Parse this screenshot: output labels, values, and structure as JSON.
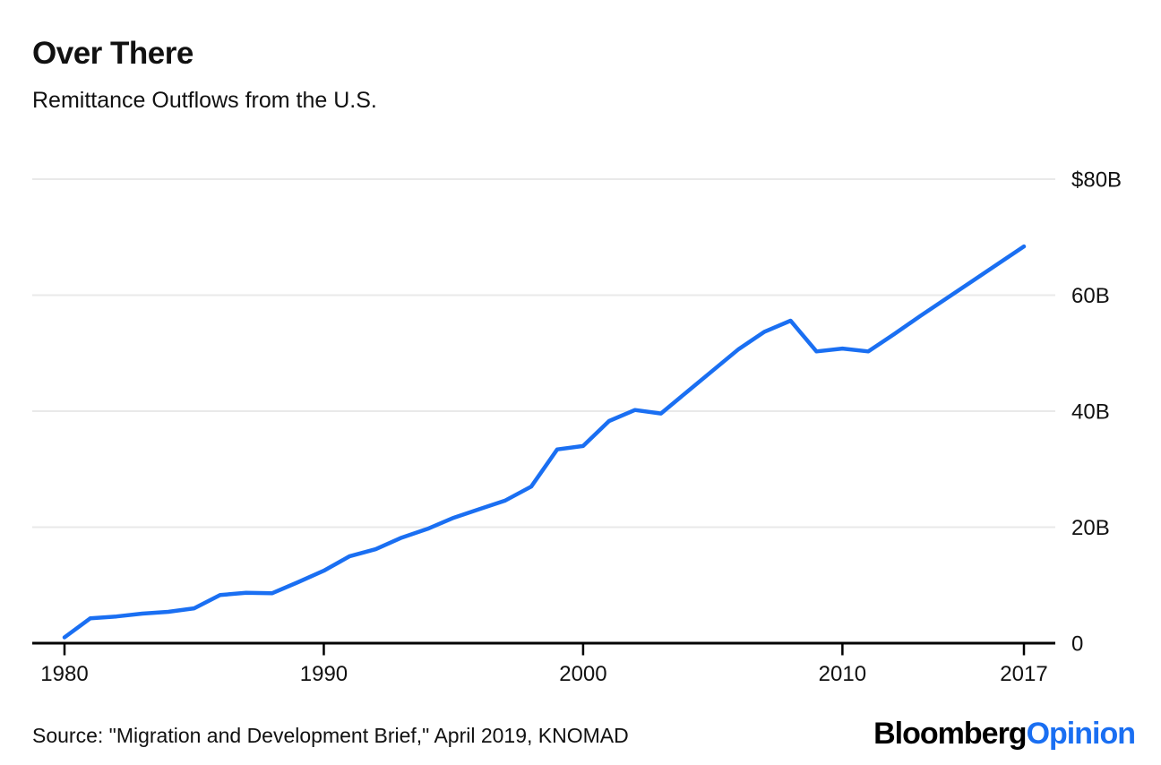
{
  "header": {
    "title": "Over There",
    "subtitle": "Remittance Outflows from the U.S."
  },
  "source": {
    "text": "Source: \"Migration and Development Brief,\" April 2019, KNOMAD"
  },
  "branding": {
    "bloomberg": "Bloomberg",
    "opinion": "Opinion"
  },
  "colors": {
    "line": "#1a6ff2",
    "grid": "#e9e9e9",
    "axis": "#000000",
    "text": "#111111",
    "opinion_blue": "#1a6ff2"
  },
  "chart_data": {
    "type": "line",
    "title": "Over There",
    "subtitle": "Remittance Outflows from the U.S.",
    "x": [
      1980,
      1981,
      1982,
      1983,
      1984,
      1985,
      1986,
      1987,
      1988,
      1989,
      1990,
      1991,
      1992,
      1993,
      1994,
      1995,
      1996,
      1997,
      1998,
      1999,
      2000,
      2001,
      2002,
      2003,
      2004,
      2005,
      2006,
      2007,
      2008,
      2009,
      2010,
      2011,
      2012,
      2013,
      2014,
      2015,
      2016,
      2017
    ],
    "series": [
      {
        "name": "Remittance outflows from the U.S. ($B)",
        "values": [
          1.0,
          4.3,
          4.6,
          5.1,
          5.4,
          6.0,
          8.3,
          8.7,
          8.6,
          10.5,
          12.5,
          15.0,
          16.2,
          18.2,
          19.7,
          21.6,
          23.1,
          24.6,
          27.0,
          33.4,
          34.0,
          38.3,
          40.2,
          39.6,
          43.3,
          47.0,
          50.7,
          53.7,
          55.6,
          50.3,
          50.8,
          50.3,
          53.3,
          56.4,
          59.4,
          62.4,
          65.4,
          68.4
        ]
      }
    ],
    "xlim": [
      1980,
      2017
    ],
    "ylim": [
      0,
      80
    ],
    "xticks": [
      1980,
      1990,
      2000,
      2010,
      2017
    ],
    "yticks": [
      0,
      20,
      40,
      60,
      80
    ],
    "ytick_labels": [
      "0",
      "20B",
      "40B",
      "60B",
      "$80B"
    ],
    "grid": true,
    "legend": "none"
  }
}
